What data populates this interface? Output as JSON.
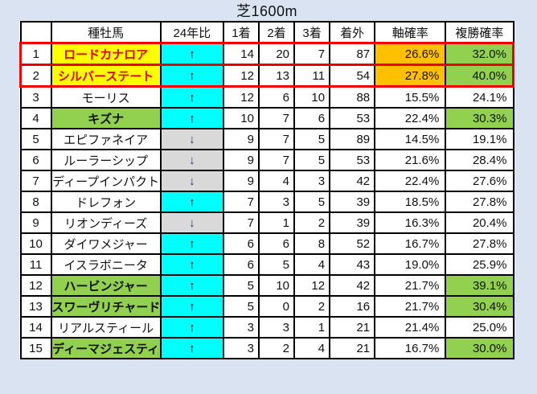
{
  "title": "芝1600m",
  "colors": {
    "page_bg": "#d9e3f1",
    "grid": "#000000",
    "highlight_outline": "#ee0000",
    "name_highlight_bg": "#ffff00",
    "name_highlight_text": "#e60000",
    "name_green_bg": "#92d050",
    "trend_up_bg": "#00ffff",
    "trend_down_bg": "#d9d9d9",
    "axis_highlight_bg": "#ffc000",
    "place_highlight_bg": "#92d050"
  },
  "trend_glyphs": {
    "up": "↑",
    "down": "↓"
  },
  "chart_data": {
    "type": "table",
    "title": "芝1600m",
    "columns": [
      "",
      "種牡馬",
      "24年比",
      "1着",
      "2着",
      "3着",
      "着外",
      "軸確率",
      "複勝確率"
    ],
    "rows": [
      {
        "rank": "1",
        "name": "ロードカナロア",
        "trend": "up",
        "first": "14",
        "second": "20",
        "third": "7",
        "out": "87",
        "axis": "26.6%",
        "place": "32.0%",
        "name_style": "yellow",
        "axis_style": "orange",
        "place_style": "green",
        "outlined": true
      },
      {
        "rank": "2",
        "name": "シルバーステート",
        "trend": "up",
        "first": "12",
        "second": "13",
        "third": "11",
        "out": "54",
        "axis": "27.8%",
        "place": "40.0%",
        "name_style": "yellow",
        "axis_style": "orange",
        "place_style": "green",
        "outlined": true
      },
      {
        "rank": "3",
        "name": "モーリス",
        "trend": "up",
        "first": "12",
        "second": "6",
        "third": "10",
        "out": "88",
        "axis": "15.5%",
        "place": "24.1%",
        "name_style": "plain",
        "axis_style": "plain",
        "place_style": "plain",
        "outlined": false
      },
      {
        "rank": "4",
        "name": "キズナ",
        "trend": "up",
        "first": "10",
        "second": "7",
        "third": "6",
        "out": "53",
        "axis": "22.4%",
        "place": "30.3%",
        "name_style": "green",
        "axis_style": "plain",
        "place_style": "green",
        "outlined": false
      },
      {
        "rank": "5",
        "name": "エピファネイア",
        "trend": "down",
        "first": "9",
        "second": "7",
        "third": "5",
        "out": "89",
        "axis": "14.5%",
        "place": "19.1%",
        "name_style": "plain",
        "axis_style": "plain",
        "place_style": "plain",
        "outlined": false
      },
      {
        "rank": "6",
        "name": "ルーラーシップ",
        "trend": "down",
        "first": "9",
        "second": "7",
        "third": "5",
        "out": "53",
        "axis": "21.6%",
        "place": "28.4%",
        "name_style": "plain",
        "axis_style": "plain",
        "place_style": "plain",
        "outlined": false
      },
      {
        "rank": "7",
        "name": "ディープインパクト",
        "trend": "down",
        "first": "9",
        "second": "4",
        "third": "3",
        "out": "42",
        "axis": "22.4%",
        "place": "27.6%",
        "name_style": "plain",
        "axis_style": "plain",
        "place_style": "plain",
        "outlined": false
      },
      {
        "rank": "8",
        "name": "ドレフォン",
        "trend": "up",
        "first": "7",
        "second": "3",
        "third": "5",
        "out": "39",
        "axis": "18.5%",
        "place": "27.8%",
        "name_style": "plain",
        "axis_style": "plain",
        "place_style": "plain",
        "outlined": false
      },
      {
        "rank": "9",
        "name": "リオンディーズ",
        "trend": "down",
        "first": "7",
        "second": "1",
        "third": "2",
        "out": "39",
        "axis": "16.3%",
        "place": "20.4%",
        "name_style": "plain",
        "axis_style": "plain",
        "place_style": "plain",
        "outlined": false
      },
      {
        "rank": "10",
        "name": "ダイワメジャー",
        "trend": "up",
        "first": "6",
        "second": "6",
        "third": "8",
        "out": "52",
        "axis": "16.7%",
        "place": "27.8%",
        "name_style": "plain",
        "axis_style": "plain",
        "place_style": "plain",
        "outlined": false
      },
      {
        "rank": "11",
        "name": "イスラボニータ",
        "trend": "up",
        "first": "6",
        "second": "5",
        "third": "4",
        "out": "43",
        "axis": "19.0%",
        "place": "25.9%",
        "name_style": "plain",
        "axis_style": "plain",
        "place_style": "plain",
        "outlined": false
      },
      {
        "rank": "12",
        "name": "ハービンジャー",
        "trend": "up",
        "first": "5",
        "second": "10",
        "third": "12",
        "out": "42",
        "axis": "21.7%",
        "place": "39.1%",
        "name_style": "green",
        "axis_style": "plain",
        "place_style": "green",
        "outlined": false
      },
      {
        "rank": "13",
        "name": "スワーヴリチャード",
        "trend": "up",
        "first": "5",
        "second": "0",
        "third": "2",
        "out": "16",
        "axis": "21.7%",
        "place": "30.4%",
        "name_style": "green",
        "axis_style": "plain",
        "place_style": "green",
        "outlined": false
      },
      {
        "rank": "14",
        "name": "リアルスティール",
        "trend": "up",
        "first": "3",
        "second": "3",
        "third": "1",
        "out": "21",
        "axis": "21.4%",
        "place": "25.0%",
        "name_style": "plain",
        "axis_style": "plain",
        "place_style": "plain",
        "outlined": false
      },
      {
        "rank": "15",
        "name": "ディーマジェスティ",
        "trend": "up",
        "first": "3",
        "second": "2",
        "third": "4",
        "out": "21",
        "axis": "16.7%",
        "place": "30.0%",
        "name_style": "green",
        "axis_style": "plain",
        "place_style": "green",
        "outlined": false
      }
    ]
  }
}
